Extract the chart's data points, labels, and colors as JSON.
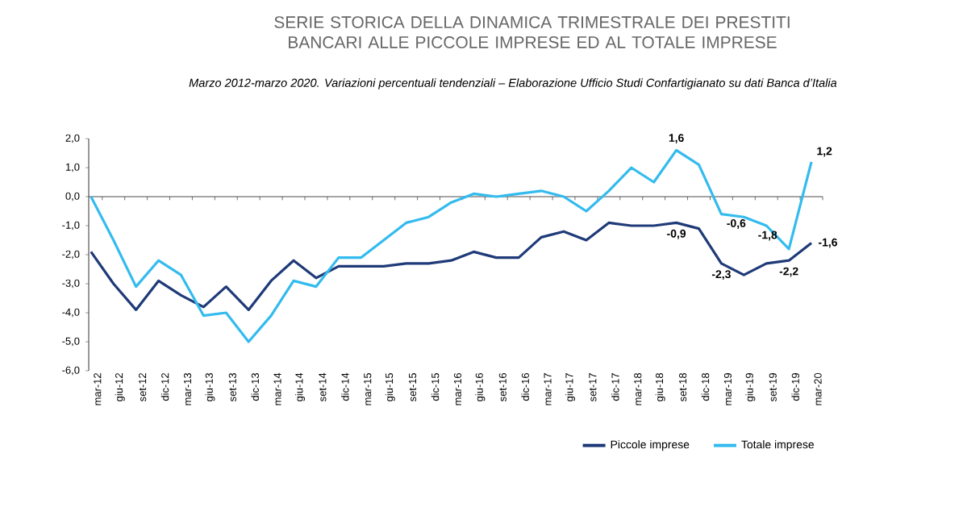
{
  "chart_data": {
    "type": "line",
    "title": "SERIE STORICA DELLA DINAMICA TRIMESTRALE DEI PRESTITI BANCARI ALLE PICCOLE IMPRESE ED AL TOTALE IMPRESE",
    "subtitle": "Marzo 2012-marzo 2020. Variazioni percentuali tendenziali – Elaborazione Ufficio Studi Confartigianato su dati Banca d’Italia",
    "categories": [
      "mar-12",
      "giu-12",
      "set-12",
      "dic-12",
      "mar-13",
      "giu-13",
      "set-13",
      "dic-13",
      "mar-14",
      "giu-14",
      "set-14",
      "dic-14",
      "mar-15",
      "giu-15",
      "set-15",
      "dic-15",
      "mar-16",
      "giu-16",
      "set-16",
      "dic-16",
      "mar-17",
      "giu-17",
      "set-17",
      "dic-17",
      "mar-18",
      "giu-18",
      "set-18",
      "dic-18",
      "mar-19",
      "giu-19",
      "set-19",
      "dic-19",
      "mar-20"
    ],
    "series": [
      {
        "name": "Piccole imprese",
        "color": "#1f3a78",
        "values": [
          -1.9,
          -3.0,
          -3.9,
          -2.9,
          -3.4,
          -3.8,
          -3.1,
          -3.9,
          -2.9,
          -2.2,
          -2.8,
          -2.4,
          -2.4,
          -2.4,
          -2.3,
          -2.3,
          -2.2,
          -1.9,
          -2.1,
          -2.1,
          -1.4,
          -1.2,
          -1.5,
          -0.9,
          -1.0,
          -1.0,
          -0.9,
          -1.1,
          -2.3,
          -2.7,
          -2.3,
          -2.2,
          -1.6
        ],
        "value_labels": [
          null,
          null,
          null,
          null,
          null,
          null,
          null,
          null,
          null,
          null,
          null,
          null,
          null,
          null,
          null,
          null,
          null,
          null,
          null,
          null,
          null,
          null,
          null,
          null,
          null,
          null,
          "-0,9",
          null,
          "-2,3",
          null,
          null,
          "-2,2",
          "-1,6"
        ]
      },
      {
        "name": "Totale imprese",
        "color": "#33bbee",
        "values": [
          0.0,
          -1.5,
          -3.1,
          -2.2,
          -2.7,
          -4.1,
          -4.0,
          -5.0,
          -4.1,
          -2.9,
          -3.1,
          -2.1,
          -2.1,
          -1.5,
          -0.9,
          -0.7,
          -0.2,
          0.1,
          0.0,
          0.1,
          0.2,
          0.0,
          -0.5,
          0.2,
          1.0,
          0.5,
          1.6,
          1.1,
          -0.6,
          -0.7,
          -1.0,
          -1.8,
          1.2
        ],
        "value_labels": [
          null,
          null,
          null,
          null,
          null,
          null,
          null,
          null,
          null,
          null,
          null,
          null,
          null,
          null,
          null,
          null,
          null,
          null,
          null,
          null,
          null,
          null,
          null,
          null,
          null,
          null,
          "1,6",
          null,
          "-0,6",
          null,
          null,
          "-1,8",
          "1,2"
        ]
      }
    ],
    "ylim": [
      -6,
      2
    ],
    "yticks": [
      {
        "value": -6,
        "label": "-6,0"
      },
      {
        "value": -5,
        "label": "-5,0"
      },
      {
        "value": -4,
        "label": "-4,0"
      },
      {
        "value": -3,
        "label": "-3,0"
      },
      {
        "value": -2,
        "label": "-2,0"
      },
      {
        "value": -1,
        "label": "-1,0"
      },
      {
        "value": 0,
        "label": "0,0"
      },
      {
        "value": 1,
        "label": "1,0"
      },
      {
        "value": 2,
        "label": "2,0"
      }
    ],
    "legend": "bottom right",
    "marker": "none",
    "line_style": "solid"
  }
}
